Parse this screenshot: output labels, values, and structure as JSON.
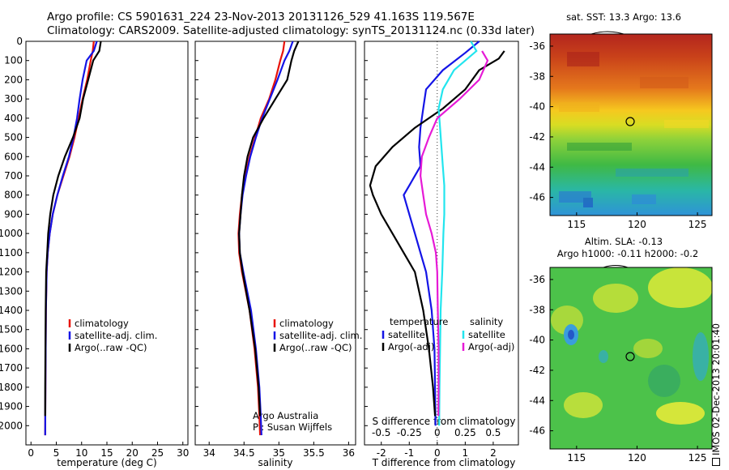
{
  "header": {
    "line1": "Argo profile: CS 5901631_224 23-Nov-2013 20131126_529 41.163S 119.567E",
    "line2": "Climatology: CARS2009. Satellite-adjusted climatology: synTS_20131124.nc (0.33d later)"
  },
  "colors": {
    "climatology": "#e8140a",
    "satellite": "#1414e6",
    "argo": "#000000",
    "satellite_salinity": "#22e5ee",
    "argo_salinity_adj": "#e61ad6"
  },
  "footer": {
    "stamp": "IMOS 02-Dec-2013 20:01:40",
    "stamp_icon": "imos-logo-icon"
  },
  "chart_data": [
    {
      "type": "line",
      "xlabel": "temperature (deg C)",
      "ylabel": "",
      "xlim": [
        -1,
        31
      ],
      "ylim": [
        2100,
        0
      ],
      "xticks": [
        "0",
        "5",
        "10",
        "15",
        "20",
        "25",
        "30"
      ],
      "yticks": [
        "0",
        "100",
        "200",
        "300",
        "400",
        "500",
        "600",
        "700",
        "800",
        "900",
        "1000",
        "1100",
        "1200",
        "1300",
        "1400",
        "1500",
        "1600",
        "1700",
        "1800",
        "1900",
        "2000"
      ],
      "legend_position": "bottom-center",
      "series": [
        {
          "name": "climatology",
          "x": [
            12.4,
            12.2,
            11.8,
            11.1,
            10.2,
            9.4,
            8.6,
            7.6,
            6.4,
            5.2,
            4.3,
            3.7,
            3.3,
            3.1,
            2.95,
            2.9,
            2.85,
            2.82,
            2.8
          ],
          "y": [
            0,
            50,
            100,
            200,
            300,
            400,
            500,
            600,
            700,
            800,
            900,
            1000,
            1100,
            1200,
            1400,
            1600,
            1800,
            1950,
            2050
          ]
        },
        {
          "name": "satellite-adj. clim.",
          "x": [
            13.0,
            12.4,
            11.0,
            10.2,
            9.6,
            9.1,
            8.4,
            7.5,
            6.3,
            5.2,
            4.3,
            3.7,
            3.3,
            3.1,
            2.95,
            2.9,
            2.85,
            2.82,
            2.8
          ],
          "y": [
            0,
            50,
            100,
            200,
            300,
            400,
            500,
            600,
            700,
            800,
            900,
            1000,
            1100,
            1200,
            1400,
            1600,
            1800,
            1950,
            2050
          ]
        },
        {
          "name": "Argo(..raw -QC)",
          "x": [
            13.8,
            13.5,
            12.3,
            11.3,
            10.3,
            9.6,
            8.3,
            6.7,
            5.4,
            4.4,
            3.8,
            3.4,
            3.2,
            3.0,
            2.9,
            2.85,
            2.8,
            2.8
          ],
          "y": [
            0,
            50,
            100,
            200,
            300,
            400,
            500,
            600,
            700,
            800,
            900,
            1000,
            1100,
            1200,
            1400,
            1600,
            1800,
            1950
          ]
        }
      ]
    },
    {
      "type": "line",
      "xlabel": "salinity",
      "ylabel": "",
      "xlim": [
        33.8,
        36.1
      ],
      "ylim": [
        2100,
        0
      ],
      "xticks": [
        "34",
        "34.5",
        "35",
        "35.5",
        "36"
      ],
      "legend_position": "bottom-right",
      "annotation": [
        "Argo Australia",
        "PI: Susan Wijffels"
      ],
      "series": [
        {
          "name": "climatology",
          "x": [
            35.08,
            35.06,
            35.02,
            34.95,
            34.86,
            34.74,
            34.66,
            34.58,
            34.52,
            34.47,
            34.44,
            34.42,
            34.43,
            34.47,
            34.58,
            34.65,
            34.7,
            34.72,
            34.73
          ],
          "y": [
            0,
            50,
            100,
            200,
            300,
            400,
            500,
            600,
            700,
            800,
            900,
            1000,
            1100,
            1200,
            1400,
            1600,
            1800,
            1950,
            2050
          ]
        },
        {
          "name": "satellite-adj. clim.",
          "x": [
            35.2,
            35.15,
            35.08,
            34.98,
            34.87,
            34.76,
            34.67,
            34.59,
            34.53,
            34.48,
            34.45,
            34.43,
            34.44,
            34.49,
            34.6,
            34.67,
            34.72,
            34.74,
            34.75
          ],
          "y": [
            0,
            50,
            100,
            200,
            300,
            400,
            500,
            600,
            700,
            800,
            900,
            1000,
            1100,
            1200,
            1400,
            1600,
            1800,
            1950,
            2050
          ]
        },
        {
          "name": "Argo(..raw -QC)",
          "x": [
            35.28,
            35.22,
            35.18,
            35.12,
            34.95,
            34.78,
            34.63,
            34.55,
            34.5,
            34.47,
            34.45,
            34.43,
            34.44,
            34.48,
            34.58,
            34.66,
            34.71,
            34.73
          ],
          "y": [
            0,
            50,
            100,
            200,
            300,
            400,
            500,
            600,
            700,
            800,
            900,
            1000,
            1100,
            1200,
            1400,
            1600,
            1800,
            1950
          ]
        }
      ]
    },
    {
      "type": "line",
      "xlabel": "T difference from climatology",
      "xlabel_secondary": "S difference from climatology",
      "xlim": [
        -2.6,
        2.9
      ],
      "ylim": [
        2100,
        0
      ],
      "xticks": [
        "-2",
        "-1",
        "0",
        "1",
        "2"
      ],
      "xticks_secondary": [
        "-0.5",
        "-0.25",
        "0",
        "0.25",
        "0.5"
      ],
      "legend_position": "bottom",
      "legend_titles": [
        "temperature",
        "salinity"
      ],
      "series": [
        {
          "name": "satellite",
          "group": "temperature",
          "x": [
            1.5,
            1.0,
            0.2,
            -0.4,
            -0.5,
            -0.6,
            -0.65,
            -0.6,
            -1.0,
            -1.2,
            -1.0,
            -0.8,
            -0.6,
            -0.4,
            -0.2,
            -0.1,
            -0.08,
            -0.06
          ],
          "y": [
            0,
            60,
            150,
            250,
            350,
            450,
            550,
            650,
            750,
            800,
            900,
            1000,
            1100,
            1200,
            1400,
            1600,
            1800,
            2000
          ]
        },
        {
          "name": "Argo(-adj)",
          "group": "temperature",
          "x": [
            2.4,
            2.2,
            1.5,
            1.0,
            0.2,
            -0.8,
            -1.6,
            -2.2,
            -2.4,
            -2.3,
            -2.0,
            -1.6,
            -1.2,
            -0.8,
            -0.5,
            -0.3,
            -0.15,
            -0.08
          ],
          "y": [
            50,
            90,
            150,
            250,
            350,
            450,
            550,
            650,
            750,
            800,
            900,
            1000,
            1100,
            1200,
            1400,
            1600,
            1800,
            1950
          ]
        },
        {
          "name": "satellite",
          "group": "salinity",
          "x": [
            1.2,
            1.4,
            0.6,
            0.2,
            0.05,
            0.1,
            0.15,
            0.2,
            0.25,
            0.25,
            0.25,
            0.22,
            0.2,
            0.18,
            0.12,
            0.1,
            0.08,
            0.07
          ],
          "y": [
            0,
            50,
            150,
            250,
            350,
            450,
            550,
            650,
            750,
            800,
            900,
            1000,
            1100,
            1200,
            1400,
            1600,
            1800,
            2000
          ]
        },
        {
          "name": "Argo(-adj)",
          "group": "salinity",
          "x": [
            1.6,
            1.8,
            1.5,
            0.8,
            0.0,
            -0.3,
            -0.55,
            -0.6,
            -0.5,
            -0.4,
            -0.2,
            -0.05,
            0.0,
            0.02,
            0.05,
            0.05,
            0.04
          ],
          "y": [
            50,
            100,
            200,
            300,
            400,
            500,
            600,
            700,
            800,
            900,
            1000,
            1100,
            1200,
            1400,
            1600,
            1800,
            1950
          ]
        }
      ]
    },
    {
      "type": "heatmap",
      "title": "sat. SST: 13.3 Argo: 13.6",
      "xlim": [
        112.8,
        126.2
      ],
      "ylim": [
        -47.2,
        -35.2
      ],
      "xticks": [
        "115",
        "120",
        "125"
      ],
      "yticks": [
        "-36",
        "-38",
        "-40",
        "-42",
        "-44",
        "-46"
      ],
      "marker": {
        "lon": 119.567,
        "lat": -41.163
      }
    },
    {
      "type": "heatmap",
      "title": "Altim. SLA: -0.13",
      "subtitle": "Argo h1000: -0.11 h2000: -0.2",
      "xlim": [
        112.8,
        126.2
      ],
      "ylim": [
        -47.2,
        -35.2
      ],
      "xticks": [
        "115",
        "120",
        "125"
      ],
      "yticks": [
        "-36",
        "-38",
        "-40",
        "-42",
        "-44",
        "-46"
      ],
      "marker": {
        "lon": 119.567,
        "lat": -41.163
      }
    }
  ]
}
